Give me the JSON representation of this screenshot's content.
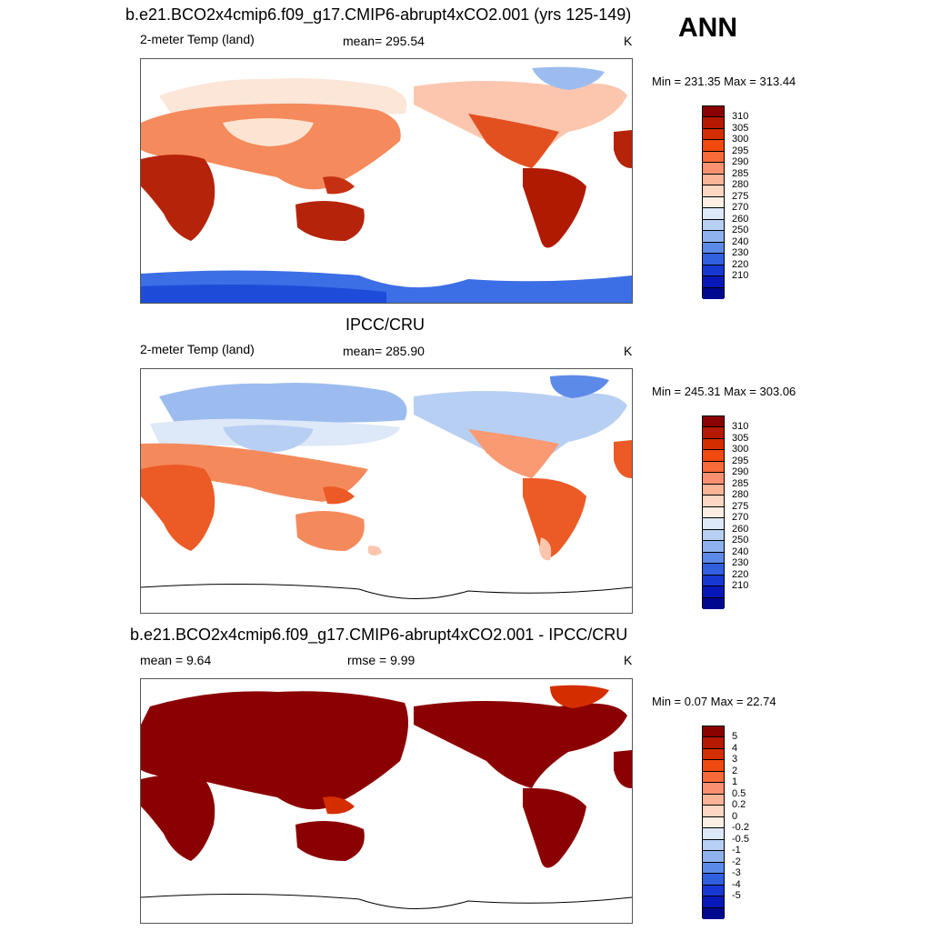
{
  "season": "ANN",
  "panels": [
    {
      "title": "b.e21.BCO2x4cmip6.f09_g17.CMIP6-abrupt4xCO2.001 (yrs 125-149)",
      "left_label": "2-meter Temp (land)",
      "mid_label": "mean= 295.54",
      "unit": "K",
      "minmax": "Min = 231.35 Max = 313.44",
      "colorbar_ticks": [
        "310",
        "305",
        "300",
        "295",
        "290",
        "285",
        "280",
        "275",
        "270",
        "260",
        "250",
        "240",
        "230",
        "220",
        "210"
      ],
      "colors": [
        "#8b0000",
        "#b51a00",
        "#d42e00",
        "#f04a10",
        "#f86a38",
        "#fa9070",
        "#fcb498",
        "#fdd6c4",
        "#fdeee4",
        "#dde8f8",
        "#b8cff4",
        "#8eb2ee",
        "#5c8ae8",
        "#3060e0",
        "#1838d4",
        "#0818b8",
        "#000890"
      ]
    },
    {
      "title": "IPCC/CRU",
      "left_label": "2-meter Temp (land)",
      "mid_label": "mean= 285.90",
      "unit": "K",
      "minmax": "Min = 245.31 Max = 303.06",
      "colorbar_ticks": [
        "310",
        "305",
        "300",
        "295",
        "290",
        "285",
        "280",
        "275",
        "270",
        "260",
        "250",
        "240",
        "230",
        "220",
        "210"
      ],
      "colors": [
        "#8b0000",
        "#b51a00",
        "#d42e00",
        "#f04a10",
        "#f86a38",
        "#fa9070",
        "#fcb498",
        "#fdd6c4",
        "#fdeee4",
        "#dde8f8",
        "#b8cff4",
        "#8eb2ee",
        "#5c8ae8",
        "#3060e0",
        "#1838d4",
        "#0818b8",
        "#000890"
      ]
    },
    {
      "title": "b.e21.BCO2x4cmip6.f09_g17.CMIP6-abrupt4xCO2.001 - IPCC/CRU",
      "left_label": "mean =   9.64",
      "mid_label": "rmse =    9.99",
      "unit": "K",
      "minmax": "Min =   0.07 Max =  22.74",
      "colorbar_ticks": [
        "5",
        "4",
        "3",
        "2",
        "1",
        "0.5",
        "0.2",
        "0",
        "-0.2",
        "-0.5",
        "-1",
        "-2",
        "-3",
        "-4",
        "-5"
      ],
      "colors": [
        "#8b0000",
        "#b51a00",
        "#d42e00",
        "#f04a10",
        "#f86a38",
        "#fa9070",
        "#fcb498",
        "#fdd6c4",
        "#fdeee4",
        "#dde8f8",
        "#b8cff4",
        "#8eb2ee",
        "#5c8ae8",
        "#3060e0",
        "#1838d4",
        "#0818b8",
        "#000890"
      ]
    }
  ]
}
